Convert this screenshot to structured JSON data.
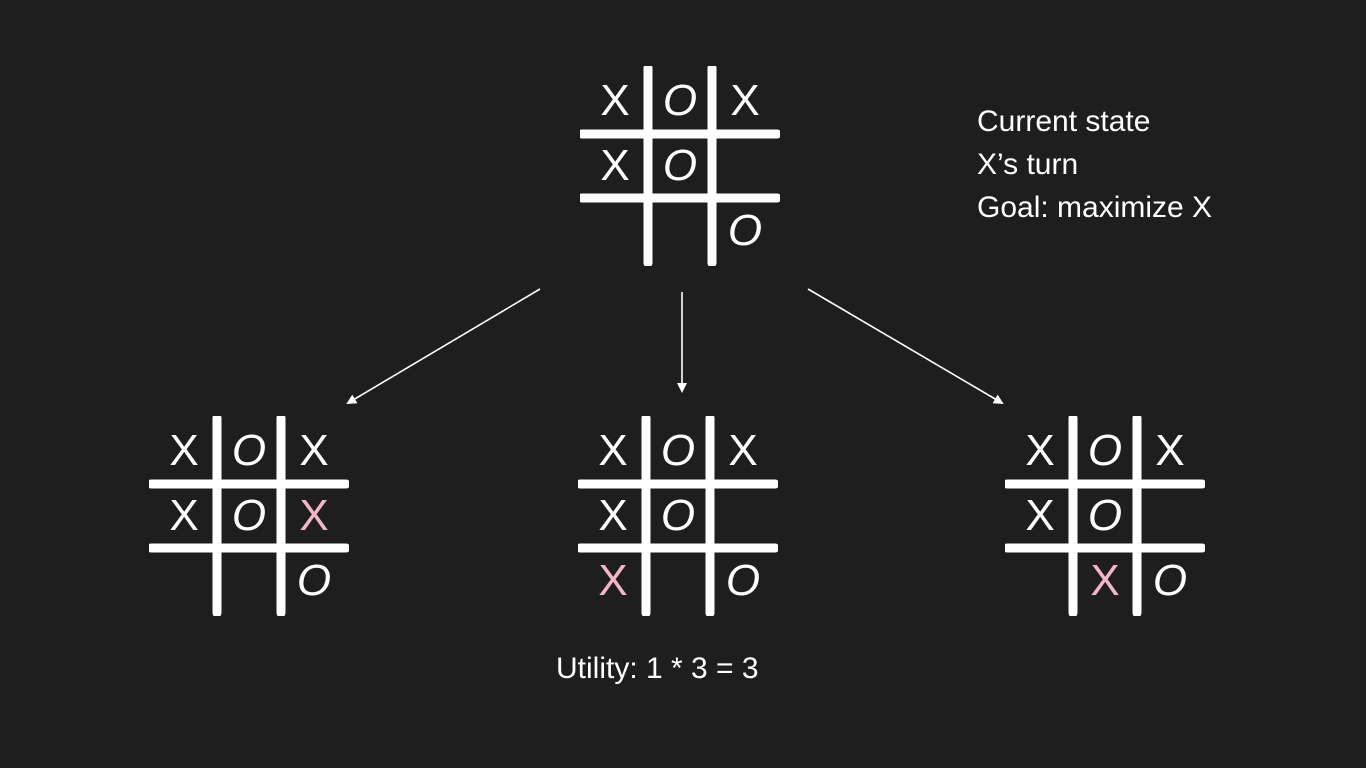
{
  "info": {
    "line1": "Current state",
    "line2": "X’s turn",
    "line3": "Goal: maximize X"
  },
  "utility_text": "Utility: 1 * 3 = 3",
  "colors": {
    "background": "#1f1e1e",
    "mark": "#ffffff",
    "new_move": "#f2b6c6"
  },
  "boards": {
    "current": {
      "cells": [
        "X",
        "O",
        "X",
        "X",
        "O",
        "",
        "",
        "",
        "O"
      ]
    },
    "left": {
      "cells": [
        "X",
        "O",
        "X",
        "X",
        "O",
        "X",
        "",
        "",
        "O"
      ],
      "new_move": 5
    },
    "middle": {
      "cells": [
        "X",
        "O",
        "X",
        "X",
        "O",
        "",
        "X",
        "",
        "O"
      ],
      "new_move": 6
    },
    "right": {
      "cells": [
        "X",
        "O",
        "X",
        "X",
        "O",
        "",
        "",
        "X",
        "O"
      ],
      "new_move": 7
    }
  }
}
